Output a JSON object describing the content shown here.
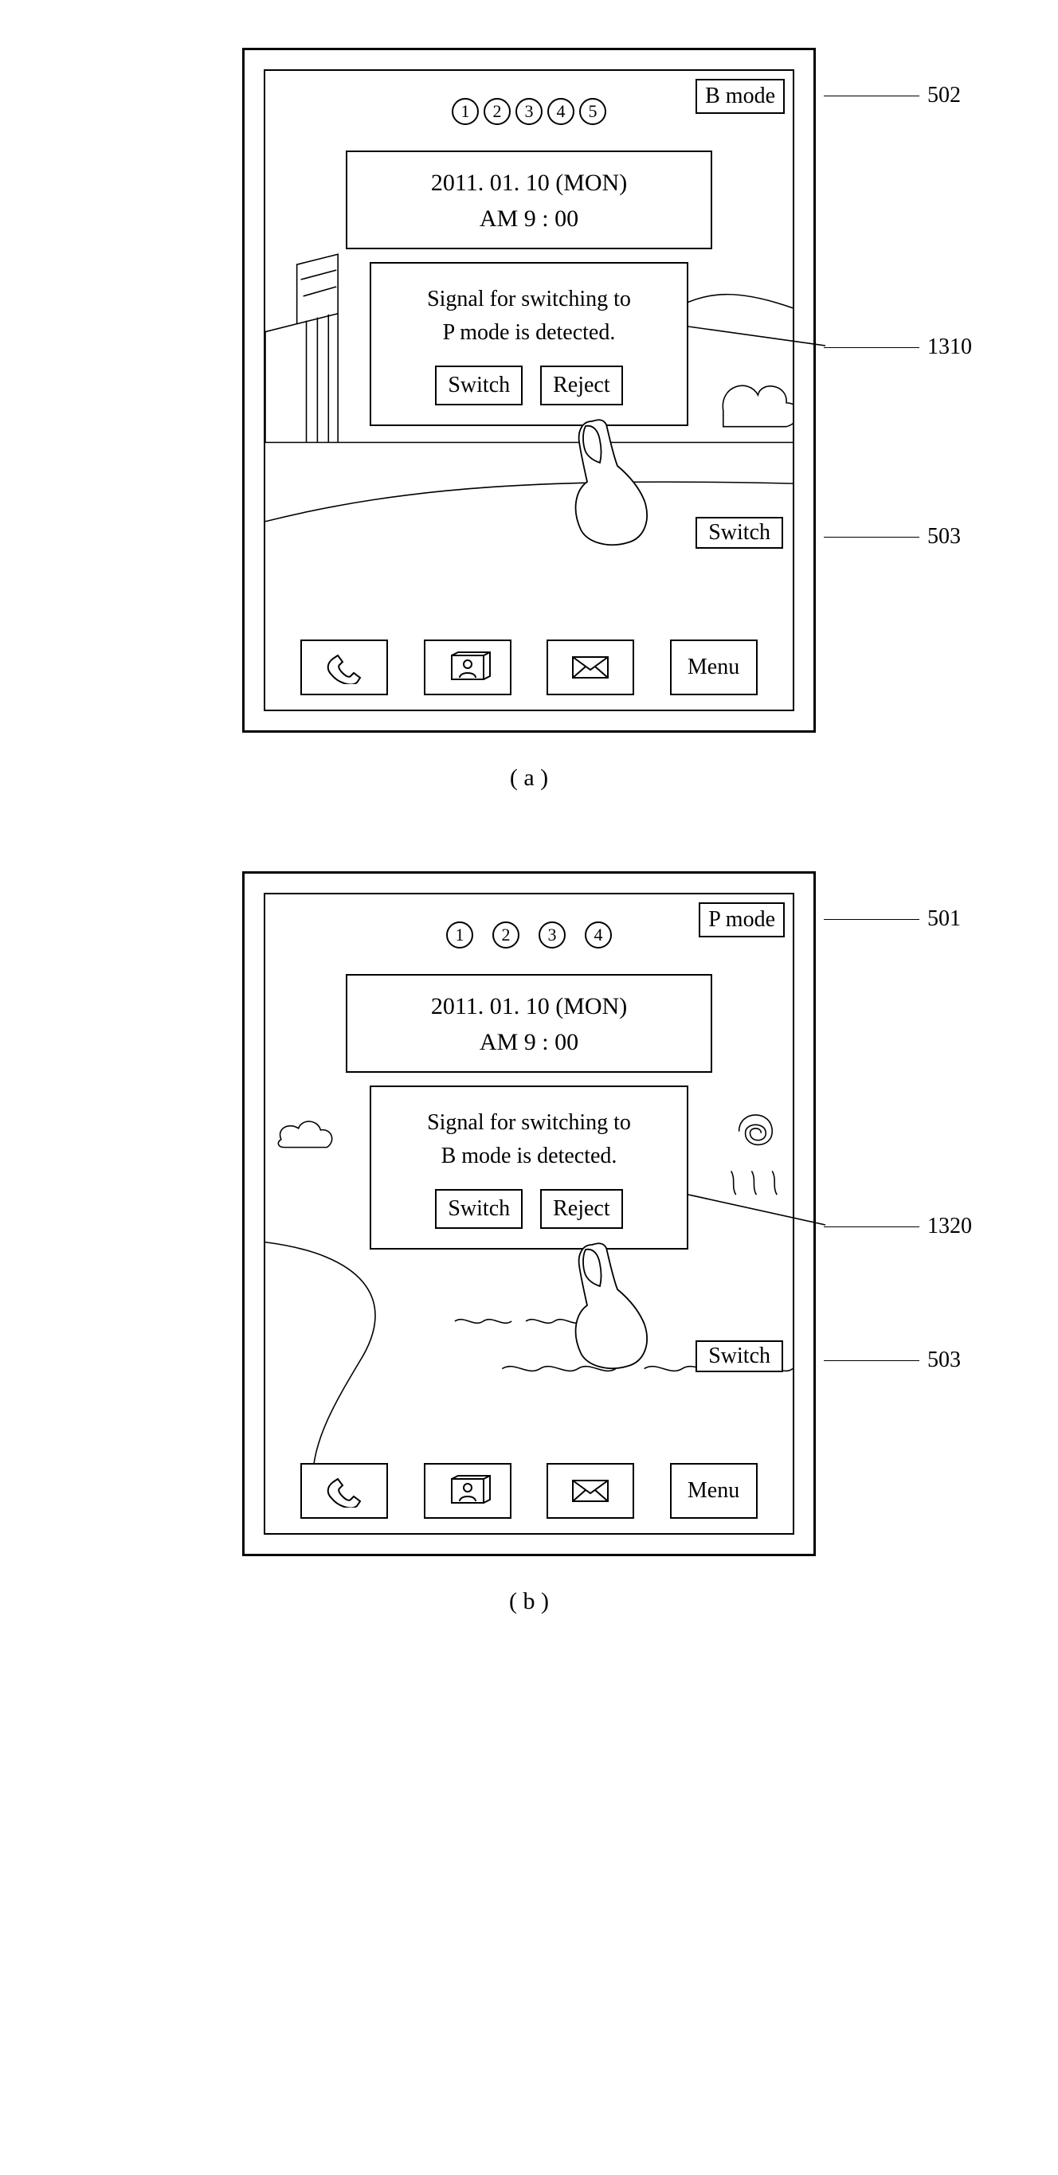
{
  "colors": {
    "stroke": "#000000",
    "background": "#ffffff",
    "lineWidth": 2
  },
  "font": {
    "family": "Times New Roman, serif",
    "baseSize": 28
  },
  "panelA": {
    "label": "( a )",
    "modeBadge": "B mode",
    "pageCount": 5,
    "pageGap": "narrow",
    "date": "2011. 01. 10 (MON)",
    "time": "AM 9 : 00",
    "dialog": {
      "line1": "Signal for switching to",
      "line2": "P mode is detected.",
      "switch": "Switch",
      "reject": "Reject"
    },
    "switchBtn": "Switch",
    "dock": {
      "menu": "Menu"
    },
    "callouts": [
      {
        "ref": "502",
        "targetTop": 38
      },
      {
        "ref": "1310",
        "targetTop": 340
      },
      {
        "ref": "503",
        "targetTop": 580
      }
    ]
  },
  "panelB": {
    "label": "( b )",
    "modeBadge": "P mode",
    "pageCount": 4,
    "pageGap": "wide",
    "date": "2011. 01. 10 (MON)",
    "time": "AM 9 : 00",
    "dialog": {
      "line1": "Signal for switching to",
      "line2": "B mode is detected.",
      "switch": "Switch",
      "reject": "Reject"
    },
    "switchBtn": "Switch",
    "dock": {
      "menu": "Menu"
    },
    "callouts": [
      {
        "ref": "501",
        "targetTop": 38
      },
      {
        "ref": "1320",
        "targetTop": 410
      },
      {
        "ref": "503",
        "targetTop": 580
      }
    ]
  }
}
